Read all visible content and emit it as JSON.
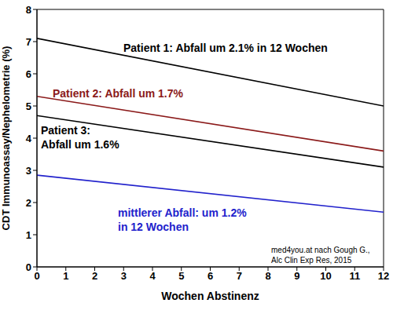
{
  "chart_data": {
    "type": "line",
    "x_label": "Wochen Abstinenz",
    "y_label": "CDT Immunoassay/Nephelometrie (%)",
    "x": [
      0,
      12
    ],
    "xlim": [
      0,
      12
    ],
    "xticks": [
      0,
      1,
      2,
      3,
      4,
      5,
      6,
      7,
      8,
      9,
      10,
      11,
      12
    ],
    "ylim": [
      0,
      8
    ],
    "yticks": [
      0,
      1,
      2,
      3,
      4,
      5,
      6,
      7,
      8
    ],
    "grid": false,
    "series": [
      {
        "color": "#000000",
        "values": [
          7.1,
          5.0
        ],
        "annotation": [
          "Patient 1: Abfall um 2.1% in 12 Wochen"
        ]
      },
      {
        "color": "#8b1a1a",
        "values": [
          5.3,
          3.6
        ],
        "annotation": [
          "Patient 2: Abfall um 1.7%"
        ]
      },
      {
        "color": "#000000",
        "values": [
          4.7,
          3.1
        ],
        "annotation": [
          "Patient 3:",
          "Abfall um 1.6%"
        ]
      },
      {
        "color": "#2222cc",
        "values": [
          2.85,
          1.7
        ],
        "annotation": [
          "mittlerer Abfall: um 1.2%",
          "in 12 Wochen"
        ]
      }
    ],
    "source": [
      "med4you.at nach Gough G.,",
      "Alc Clin Exp Res, 2015"
    ]
  }
}
